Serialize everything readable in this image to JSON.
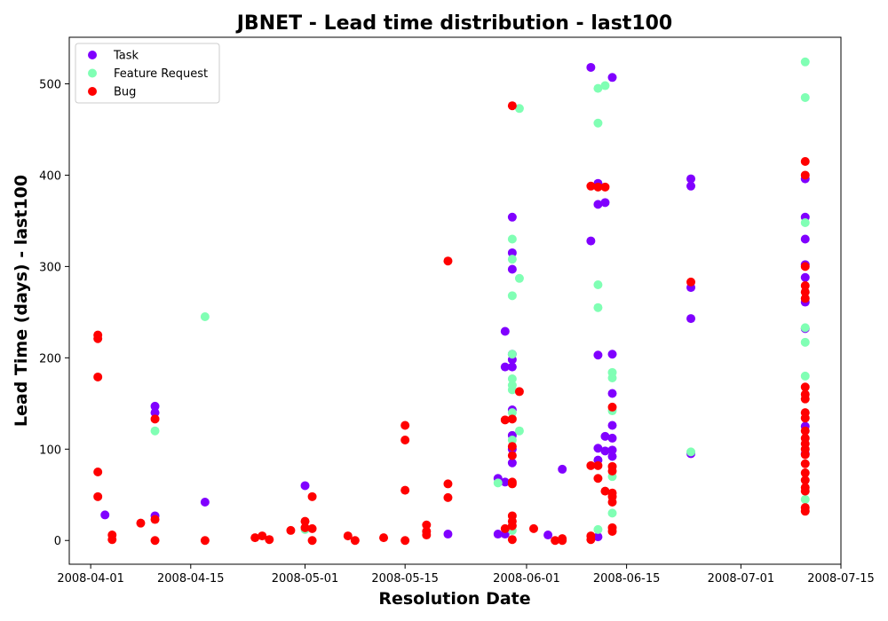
{
  "chart_data": {
    "type": "scatter",
    "title": "JBNET - Lead time distribution - last100",
    "xlabel": "Resolution Date",
    "ylabel": "Lead Time (days) - last100",
    "x_ticks": [
      "2008-04-01",
      "2008-04-15",
      "2008-05-01",
      "2008-05-15",
      "2008-06-01",
      "2008-06-15",
      "2008-07-01",
      "2008-07-15"
    ],
    "y_ticks": [
      0,
      100,
      200,
      300,
      400,
      500
    ],
    "xlim": [
      "2008-03-29",
      "2008-07-15"
    ],
    "ylim": [
      -26,
      551
    ],
    "legend_position": "top-left",
    "series": [
      {
        "name": "Task",
        "color": "#8000ff",
        "points": [
          [
            "2008-04-03",
            28
          ],
          [
            "2008-04-10",
            147
          ],
          [
            "2008-04-10",
            140
          ],
          [
            "2008-04-10",
            27
          ],
          [
            "2008-04-17",
            42
          ],
          [
            "2008-05-01",
            60
          ],
          [
            "2008-05-21",
            7
          ],
          [
            "2008-05-28",
            68
          ],
          [
            "2008-05-28",
            7
          ],
          [
            "2008-05-29",
            229
          ],
          [
            "2008-05-29",
            190
          ],
          [
            "2008-05-29",
            64
          ],
          [
            "2008-05-29",
            7
          ],
          [
            "2008-05-30",
            354
          ],
          [
            "2008-05-30",
            315
          ],
          [
            "2008-05-30",
            297
          ],
          [
            "2008-05-30",
            204
          ],
          [
            "2008-05-30",
            198
          ],
          [
            "2008-05-30",
            190
          ],
          [
            "2008-05-30",
            143
          ],
          [
            "2008-05-30",
            115
          ],
          [
            "2008-05-30",
            100
          ],
          [
            "2008-05-30",
            85
          ],
          [
            "2008-06-04",
            6
          ],
          [
            "2008-06-06",
            78
          ],
          [
            "2008-06-10",
            518
          ],
          [
            "2008-06-10",
            328
          ],
          [
            "2008-06-11",
            391
          ],
          [
            "2008-06-11",
            368
          ],
          [
            "2008-06-11",
            203
          ],
          [
            "2008-06-11",
            101
          ],
          [
            "2008-06-11",
            88
          ],
          [
            "2008-06-11",
            4
          ],
          [
            "2008-06-12",
            370
          ],
          [
            "2008-06-12",
            114
          ],
          [
            "2008-06-12",
            98
          ],
          [
            "2008-06-13",
            507
          ],
          [
            "2008-06-13",
            204
          ],
          [
            "2008-06-13",
            161
          ],
          [
            "2008-06-13",
            126
          ],
          [
            "2008-06-13",
            112
          ],
          [
            "2008-06-13",
            99
          ],
          [
            "2008-06-13",
            92
          ],
          [
            "2008-06-24",
            396
          ],
          [
            "2008-06-24",
            388
          ],
          [
            "2008-06-24",
            277
          ],
          [
            "2008-06-24",
            243
          ],
          [
            "2008-06-24",
            95
          ],
          [
            "2008-07-10",
            396
          ],
          [
            "2008-07-10",
            354
          ],
          [
            "2008-07-10",
            330
          ],
          [
            "2008-07-10",
            302
          ],
          [
            "2008-07-10",
            288
          ],
          [
            "2008-07-10",
            261
          ],
          [
            "2008-07-10",
            232
          ],
          [
            "2008-07-10",
            125
          ],
          [
            "2008-07-10",
            95
          ]
        ]
      },
      {
        "name": "Feature Request",
        "color": "#80ffb4",
        "points": [
          [
            "2008-04-10",
            120
          ],
          [
            "2008-04-17",
            245
          ],
          [
            "2008-05-01",
            12
          ],
          [
            "2008-05-28",
            63
          ],
          [
            "2008-05-30",
            330
          ],
          [
            "2008-05-30",
            308
          ],
          [
            "2008-05-30",
            268
          ],
          [
            "2008-05-30",
            204
          ],
          [
            "2008-05-30",
            177
          ],
          [
            "2008-05-30",
            170
          ],
          [
            "2008-05-30",
            165
          ],
          [
            "2008-05-30",
            140
          ],
          [
            "2008-05-30",
            110
          ],
          [
            "2008-05-30",
            11
          ],
          [
            "2008-05-31",
            473
          ],
          [
            "2008-05-31",
            287
          ],
          [
            "2008-05-31",
            120
          ],
          [
            "2008-06-11",
            495
          ],
          [
            "2008-06-11",
            457
          ],
          [
            "2008-06-11",
            280
          ],
          [
            "2008-06-11",
            255
          ],
          [
            "2008-06-11",
            12
          ],
          [
            "2008-06-12",
            498
          ],
          [
            "2008-06-13",
            184
          ],
          [
            "2008-06-13",
            178
          ],
          [
            "2008-06-13",
            142
          ],
          [
            "2008-06-13",
            70
          ],
          [
            "2008-06-13",
            30
          ],
          [
            "2008-06-24",
            97
          ],
          [
            "2008-07-10",
            524
          ],
          [
            "2008-07-10",
            485
          ],
          [
            "2008-07-10",
            348
          ],
          [
            "2008-07-10",
            233
          ],
          [
            "2008-07-10",
            217
          ],
          [
            "2008-07-10",
            180
          ],
          [
            "2008-07-10",
            45
          ]
        ]
      },
      {
        "name": "Bug",
        "color": "#ff0000",
        "points": [
          [
            "2008-04-02",
            225
          ],
          [
            "2008-04-02",
            221
          ],
          [
            "2008-04-02",
            179
          ],
          [
            "2008-04-02",
            75
          ],
          [
            "2008-04-02",
            48
          ],
          [
            "2008-04-04",
            6
          ],
          [
            "2008-04-04",
            1
          ],
          [
            "2008-04-08",
            19
          ],
          [
            "2008-04-10",
            133
          ],
          [
            "2008-04-10",
            23
          ],
          [
            "2008-04-10",
            0
          ],
          [
            "2008-04-17",
            0
          ],
          [
            "2008-04-24",
            3
          ],
          [
            "2008-04-25",
            5
          ],
          [
            "2008-04-26",
            1
          ],
          [
            "2008-04-29",
            11
          ],
          [
            "2008-05-01",
            21
          ],
          [
            "2008-05-01",
            14
          ],
          [
            "2008-05-02",
            48
          ],
          [
            "2008-05-02",
            13
          ],
          [
            "2008-05-02",
            0
          ],
          [
            "2008-05-07",
            5
          ],
          [
            "2008-05-08",
            0
          ],
          [
            "2008-05-12",
            3
          ],
          [
            "2008-05-15",
            126
          ],
          [
            "2008-05-15",
            110
          ],
          [
            "2008-05-15",
            55
          ],
          [
            "2008-05-15",
            0
          ],
          [
            "2008-05-18",
            17
          ],
          [
            "2008-05-18",
            10
          ],
          [
            "2008-05-18",
            6
          ],
          [
            "2008-05-21",
            306
          ],
          [
            "2008-05-21",
            62
          ],
          [
            "2008-05-21",
            47
          ],
          [
            "2008-05-29",
            132
          ],
          [
            "2008-05-29",
            13
          ],
          [
            "2008-05-30",
            476
          ],
          [
            "2008-05-30",
            133
          ],
          [
            "2008-05-30",
            103
          ],
          [
            "2008-05-30",
            93
          ],
          [
            "2008-05-30",
            64
          ],
          [
            "2008-05-30",
            62
          ],
          [
            "2008-05-30",
            27
          ],
          [
            "2008-05-30",
            21
          ],
          [
            "2008-05-30",
            16
          ],
          [
            "2008-05-30",
            1
          ],
          [
            "2008-05-31",
            163
          ],
          [
            "2008-06-02",
            13
          ],
          [
            "2008-06-05",
            0
          ],
          [
            "2008-06-06",
            2
          ],
          [
            "2008-06-06",
            0
          ],
          [
            "2008-06-10",
            388
          ],
          [
            "2008-06-10",
            82
          ],
          [
            "2008-06-10",
            5
          ],
          [
            "2008-06-10",
            1
          ],
          [
            "2008-06-11",
            387
          ],
          [
            "2008-06-11",
            82
          ],
          [
            "2008-06-11",
            68
          ],
          [
            "2008-06-12",
            387
          ],
          [
            "2008-06-12",
            54
          ],
          [
            "2008-06-13",
            146
          ],
          [
            "2008-06-13",
            81
          ],
          [
            "2008-06-13",
            76
          ],
          [
            "2008-06-13",
            52
          ],
          [
            "2008-06-13",
            48
          ],
          [
            "2008-06-13",
            42
          ],
          [
            "2008-06-13",
            14
          ],
          [
            "2008-06-13",
            10
          ],
          [
            "2008-06-24",
            283
          ],
          [
            "2008-07-10",
            415
          ],
          [
            "2008-07-10",
            400
          ],
          [
            "2008-07-10",
            300
          ],
          [
            "2008-07-10",
            279
          ],
          [
            "2008-07-10",
            272
          ],
          [
            "2008-07-10",
            265
          ],
          [
            "2008-07-10",
            168
          ],
          [
            "2008-07-10",
            160
          ],
          [
            "2008-07-10",
            155
          ],
          [
            "2008-07-10",
            140
          ],
          [
            "2008-07-10",
            134
          ],
          [
            "2008-07-10",
            120
          ],
          [
            "2008-07-10",
            112
          ],
          [
            "2008-07-10",
            106
          ],
          [
            "2008-07-10",
            100
          ],
          [
            "2008-07-10",
            94
          ],
          [
            "2008-07-10",
            84
          ],
          [
            "2008-07-10",
            74
          ],
          [
            "2008-07-10",
            66
          ],
          [
            "2008-07-10",
            58
          ],
          [
            "2008-07-10",
            54
          ],
          [
            "2008-07-10",
            36
          ],
          [
            "2008-07-10",
            32
          ]
        ]
      }
    ]
  }
}
